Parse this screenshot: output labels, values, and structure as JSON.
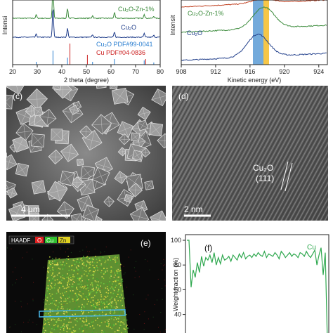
{
  "panel_a": {
    "xlabel": "2 theta (degree)",
    "ylabel": "Intensi",
    "xticks": [
      "20",
      "30",
      "40",
      "50",
      "60",
      "70",
      "80"
    ],
    "series": [
      {
        "name": "Cu₂O-Zn-1%",
        "color": "#3a8a3a"
      },
      {
        "name": "Cu₂O",
        "color": "#1f3d8a"
      }
    ],
    "references": [
      {
        "name": "Cu₂O PDF#99-0041",
        "color": "#2b7fd0"
      },
      {
        "name": "Cu PDF#04-0836",
        "color": "#cc2222"
      }
    ]
  },
  "panel_b": {
    "xlabel": "Kinetic energy (eV)",
    "ylabel": "Intensit",
    "xticks": [
      "908",
      "912",
      "916",
      "920",
      "924"
    ],
    "series": [
      {
        "name": "Cu₂O-Zn-1%",
        "color": "#3a8a3a"
      },
      {
        "name": "Cu₂O",
        "color": "#1f3d8a"
      }
    ]
  },
  "panel_c": {
    "label": "(c)",
    "scalebar": "4 μm"
  },
  "panel_d": {
    "label": "(d)",
    "scalebar": "2 nm",
    "annotation_1": "Cu₂O",
    "annotation_2": "(111)"
  },
  "panel_e": {
    "label": "(e)",
    "legend": [
      "HAADF",
      "O",
      "Cu",
      "Zn"
    ],
    "colors": {
      "O": "#e02020",
      "Cu": "#30c030",
      "Zn": "#e0d020"
    }
  },
  "panel_f": {
    "label": "(f)",
    "ylabel": "Weight fraction (%)",
    "yticks": [
      "100",
      "80",
      "60",
      "40"
    ],
    "series_name": "Cu",
    "series_color": "#2fa84f",
    "chart_data": {
      "type": "line",
      "ylim": [
        25,
        100
      ],
      "values": [
        100,
        100,
        62,
        76,
        70,
        82,
        74,
        87,
        79,
        86,
        84,
        88,
        82,
        90,
        80,
        86,
        81,
        88,
        84,
        85,
        87,
        83,
        88,
        86,
        84,
        89,
        86,
        90,
        85,
        87,
        88,
        86,
        89,
        87,
        90,
        88,
        87,
        91,
        86,
        89,
        88,
        87,
        90,
        88,
        85,
        91,
        89,
        86,
        88,
        90,
        87,
        89,
        88,
        86,
        90,
        89,
        87,
        91,
        88,
        86,
        89,
        92,
        80,
        88,
        94,
        72,
        90,
        18
      ]
    }
  }
}
